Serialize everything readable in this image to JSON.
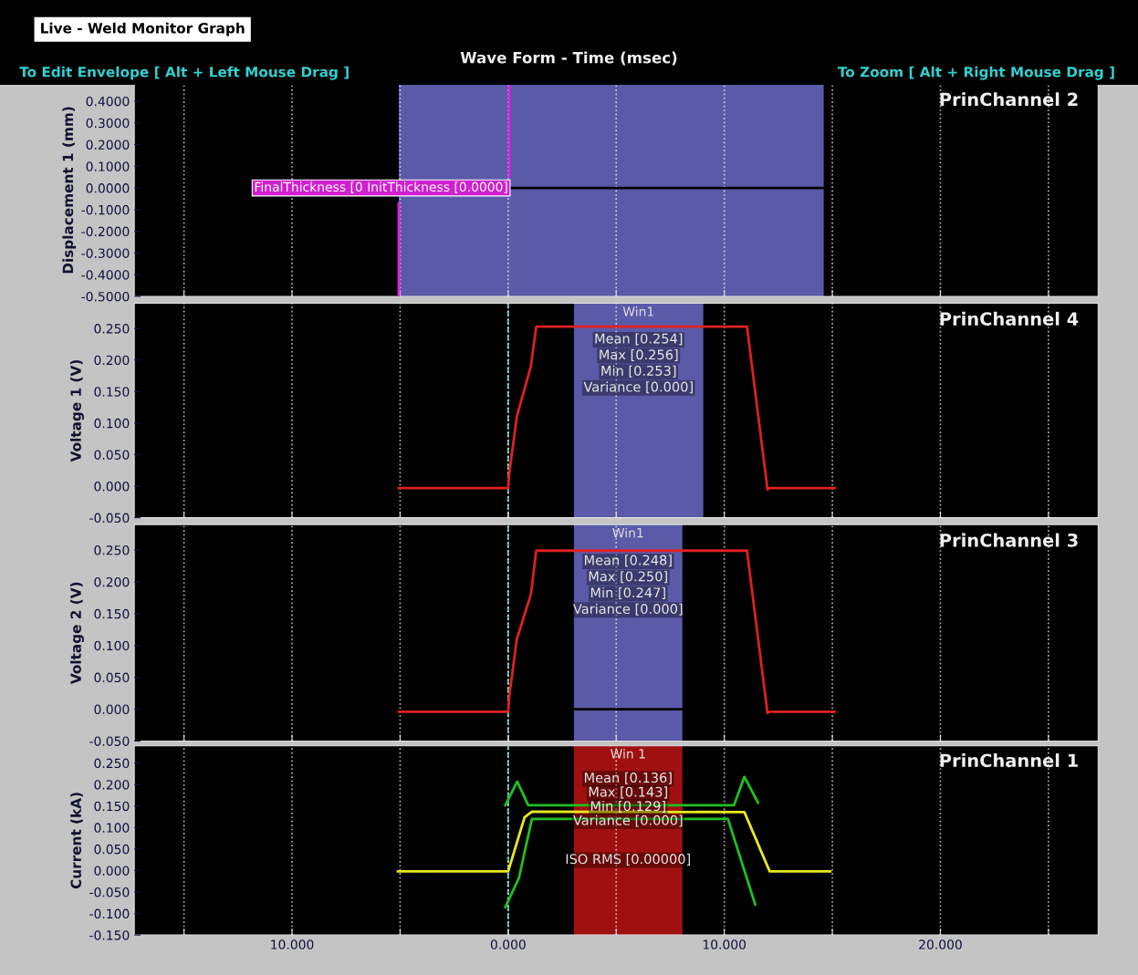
{
  "chart_data": [
    {
      "type": "line",
      "title": "Wave Form - Time (msec)",
      "subtitle": "PrinChannel 2",
      "ylabel": "Displacement 1 (mm)",
      "annotations": [
        "Live - Weld Monitor Graph",
        "To Edit Envelope [ Alt + Left Mouse Drag ]",
        "To Zoom [ Alt + Right Mouse Drag ]",
        {
          "text": "FinalThickness [0 InitThickness [0.0000]",
          "x": 0,
          "y": 0
        }
      ],
      "series": [
        {
          "x": [
            0.05,
            14.6
          ],
          "values": [
            0,
            0
          ],
          "color": "#000000"
        },
        {
          "x": [
            -5.06,
            -5.06
          ],
          "values": [
            -0.5,
            -0.07
          ],
          "color": "#e020e0"
        },
        {
          "x": [
            0.05,
            0.05
          ],
          "values": [
            0.48,
            0.05
          ],
          "color": "#e020e0"
        }
      ],
      "bands": [
        {
          "axis": "x",
          "from": -5.06,
          "to": 14.6,
          "color": "#5a5aa8"
        }
      ],
      "xlim": [
        -17.3,
        27.3
      ],
      "ylim": [
        -0.5,
        0.48
      ],
      "xticks": [
        {
          "value": -15,
          "label": null
        },
        {
          "value": -10,
          "label": null
        },
        {
          "value": -5,
          "label": null
        },
        {
          "value": 0,
          "label": null
        },
        {
          "value": 5,
          "label": null
        },
        {
          "value": 10,
          "label": null
        },
        {
          "value": 15,
          "label": null
        },
        {
          "value": 20,
          "label": null
        },
        {
          "value": 25,
          "label": null
        }
      ],
      "yticks": [
        {
          "value": 0.4,
          "label": "0.4000"
        },
        {
          "value": 0.3,
          "label": "0.3000"
        },
        {
          "value": 0.2,
          "label": "0.2000"
        },
        {
          "value": 0.1,
          "label": "0.1000"
        },
        {
          "value": 0,
          "label": "0.0000"
        },
        {
          "value": -0.1,
          "label": "-0.1000"
        },
        {
          "value": -0.2,
          "label": "-0.2000"
        },
        {
          "value": -0.3,
          "label": "-0.3000"
        },
        {
          "value": -0.4,
          "label": "-0.4000"
        },
        {
          "value": -0.5,
          "label": "-0.5000"
        }
      ],
      "tick_labels": "y",
      "grid": "x",
      "legend": false
    },
    {
      "type": "line",
      "subtitle": "PrinChannel 4",
      "ylabel": "Voltage 1 (V)",
      "annotations": [
        "Mean [0.254]",
        "Max [0.256]",
        "Min [0.253]",
        "Variance [0.000]"
      ],
      "series": [
        {
          "x": [
            -5.06,
            0,
            0.05,
            0.4,
            1.05,
            1.3,
            11.05,
            12.0,
            12.1,
            15.1
          ],
          "values": [
            -0.003,
            -0.003,
            0.02,
            0.11,
            0.19,
            0.253,
            0.253,
            -0.005,
            -0.003,
            -0.003
          ],
          "color": "#e02020"
        }
      ],
      "bands": [
        {
          "axis": "x",
          "from": 3.04,
          "to": 9.03,
          "color": "#5a5aa8",
          "label": "Win1"
        }
      ],
      "ref_lines": [
        {
          "axis": "x",
          "value": 0,
          "color": "#40e0d0",
          "line_style": "dashed"
        }
      ],
      "xlim": [
        -17.3,
        27.3
      ],
      "ylim": [
        -0.05,
        0.29
      ],
      "xticks": [
        {
          "value": -15,
          "label": null
        },
        {
          "value": -10,
          "label": null
        },
        {
          "value": -5,
          "label": null
        },
        {
          "value": 0,
          "label": null
        },
        {
          "value": 5,
          "label": null
        },
        {
          "value": 10,
          "label": null
        },
        {
          "value": 15,
          "label": null
        },
        {
          "value": 20,
          "label": null
        },
        {
          "value": 25,
          "label": null
        }
      ],
      "yticks": [
        {
          "value": 0.25,
          "label": "0.250"
        },
        {
          "value": 0.2,
          "label": "0.200"
        },
        {
          "value": 0.15,
          "label": "0.150"
        },
        {
          "value": 0.1,
          "label": "0.100"
        },
        {
          "value": 0.05,
          "label": "0.050"
        },
        {
          "value": 0,
          "label": "0.000"
        },
        {
          "value": -0.05,
          "label": "-0.050"
        }
      ],
      "tick_labels": "y",
      "grid": "x",
      "legend": false
    },
    {
      "type": "line",
      "subtitle": "PrinChannel 3",
      "ylabel": "Voltage 2 (V)",
      "annotations": [
        "Mean [0.248]",
        "Max [0.250]",
        "Min [0.247]",
        "Variance [0.000]"
      ],
      "series": [
        {
          "x": [
            -5.06,
            0,
            0.05,
            0.4,
            1.05,
            1.3,
            11.05,
            12.0,
            12.1,
            15.1
          ],
          "values": [
            -0.004,
            -0.004,
            0.02,
            0.11,
            0.18,
            0.249,
            0.249,
            -0.006,
            -0.004,
            -0.004
          ],
          "color": "#e02020"
        },
        {
          "x": [
            3.04,
            8.06
          ],
          "values": [
            0,
            0
          ],
          "color": "#000000"
        }
      ],
      "bands": [
        {
          "axis": "x",
          "from": 3.04,
          "to": 8.06,
          "color": "#5a5aa8",
          "label": "Win1"
        }
      ],
      "ref_lines": [
        {
          "axis": "x",
          "value": 0,
          "color": "#40e0d0",
          "line_style": "dashed"
        }
      ],
      "xlim": [
        -17.3,
        27.3
      ],
      "ylim": [
        -0.05,
        0.29
      ],
      "xticks": [
        {
          "value": -15,
          "label": null
        },
        {
          "value": -10,
          "label": null
        },
        {
          "value": -5,
          "label": null
        },
        {
          "value": 0,
          "label": null
        },
        {
          "value": 5,
          "label": null
        },
        {
          "value": 10,
          "label": null
        },
        {
          "value": 15,
          "label": null
        },
        {
          "value": 20,
          "label": null
        },
        {
          "value": 25,
          "label": null
        }
      ],
      "yticks": [
        {
          "value": 0.25,
          "label": "0.250"
        },
        {
          "value": 0.2,
          "label": "0.200"
        },
        {
          "value": 0.15,
          "label": "0.150"
        },
        {
          "value": 0.1,
          "label": "0.100"
        },
        {
          "value": 0.05,
          "label": "0.050"
        },
        {
          "value": 0,
          "label": "0.000"
        },
        {
          "value": -0.05,
          "label": "-0.050"
        }
      ],
      "tick_labels": "y",
      "grid": "x",
      "legend": false
    },
    {
      "type": "line",
      "subtitle": "PrinChannel 1",
      "ylabel": "Current (kA)",
      "annotations": [
        "Mean [0.136]",
        "Max [0.143]",
        "Min [0.129]",
        "Variance [0.000]",
        "ISO RMS [0.00000]"
      ],
      "series": [
        {
          "x": [
            -5.1,
            0,
            0.76,
            1.1,
            10.93,
            12.1,
            14.9
          ],
          "values": [
            -0.002,
            -0.002,
            0.124,
            0.137,
            0.136,
            -0.002,
            -0.002
          ],
          "color": "#e8e820"
        },
        {
          "x": [
            -0.13,
            0.42,
            0.93,
            10.45,
            10.93,
            11.56
          ],
          "values": [
            0.152,
            0.207,
            0.152,
            0.152,
            0.218,
            0.158
          ],
          "color": "#20c020"
        },
        {
          "x": [
            -0.13,
            0.5,
            1.1,
            10.17,
            11.43
          ],
          "values": [
            -0.085,
            -0.017,
            0.12,
            0.12,
            -0.079
          ],
          "color": "#20c020"
        }
      ],
      "bands": [
        {
          "axis": "x",
          "from": 3.04,
          "to": 8.06,
          "color": "#a01010",
          "label": "Win 1"
        }
      ],
      "ref_lines": [
        {
          "axis": "x",
          "value": 0,
          "color": "#40e0d0",
          "line_style": "dashed"
        }
      ],
      "xlim": [
        -17.3,
        27.3
      ],
      "ylim": [
        -0.15,
        0.29
      ],
      "xticks": [
        {
          "value": -15,
          "label": null
        },
        {
          "value": -10,
          "label": "10.000"
        },
        {
          "value": -5,
          "label": null
        },
        {
          "value": 0,
          "label": "0.000"
        },
        {
          "value": 5,
          "label": null
        },
        {
          "value": 10,
          "label": "10.000"
        },
        {
          "value": 15,
          "label": null
        },
        {
          "value": 20,
          "label": "20.000"
        },
        {
          "value": 25,
          "label": null
        }
      ],
      "yticks": [
        {
          "value": 0.25,
          "label": "0.250"
        },
        {
          "value": 0.2,
          "label": "0.200"
        },
        {
          "value": 0.15,
          "label": "0.150"
        },
        {
          "value": 0.1,
          "label": "0.100"
        },
        {
          "value": 0.05,
          "label": "0.050"
        },
        {
          "value": 0,
          "label": "0.000"
        },
        {
          "value": -0.05,
          "label": "-0.050"
        },
        {
          "value": -0.1,
          "label": "-0.100"
        },
        {
          "value": -0.15,
          "label": "-0.150"
        }
      ],
      "grid": "x",
      "legend": false
    }
  ]
}
